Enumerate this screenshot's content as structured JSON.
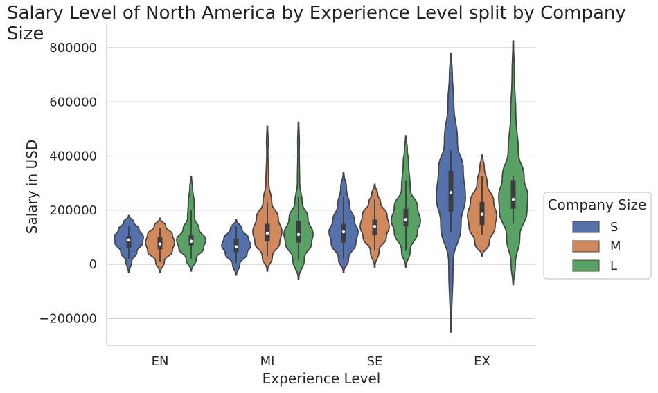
{
  "chart_data": {
    "type": "violin",
    "title": "Salary Level of North America by Experience Level split by Company Size",
    "xlabel": "Experience Level",
    "ylabel": "Salary in USD",
    "ylim": [
      -300000,
      880000
    ],
    "yticks": [
      -200000,
      0,
      200000,
      400000,
      600000,
      800000
    ],
    "ytick_labels": [
      "−200000",
      "0",
      "200000",
      "400000",
      "600000",
      "800000"
    ],
    "categories": [
      "EN",
      "MI",
      "SE",
      "EX"
    ],
    "legend": {
      "title": "Company Size",
      "placement": "right",
      "entries": [
        "S",
        "M",
        "L"
      ]
    },
    "colors": {
      "S": "#5471ab",
      "M": "#d1885c",
      "L": "#59a266"
    },
    "series": [
      {
        "name": "S",
        "violins": [
          {
            "category": "EN",
            "min": -30000,
            "max": 180000,
            "q1": 60000,
            "median": 90000,
            "q3": 105000,
            "whisker_low": 20000,
            "whisker_high": 140000,
            "density": [
              [
                -30000,
                0.02
              ],
              [
                10000,
                0.2
              ],
              [
                45000,
                0.55
              ],
              [
                80000,
                0.95
              ],
              [
                100000,
                1.0
              ],
              [
                130000,
                0.7
              ],
              [
                155000,
                0.35
              ],
              [
                180000,
                0.02
              ]
            ]
          },
          {
            "category": "MI",
            "min": -40000,
            "max": 165000,
            "q1": 45000,
            "median": 65000,
            "q3": 95000,
            "whisker_low": 5000,
            "whisker_high": 140000,
            "density": [
              [
                -40000,
                0.02
              ],
              [
                0,
                0.25
              ],
              [
                40000,
                0.75
              ],
              [
                70000,
                1.0
              ],
              [
                95000,
                0.85
              ],
              [
                130000,
                0.4
              ],
              [
                165000,
                0.02
              ]
            ]
          },
          {
            "category": "SE",
            "min": -30000,
            "max": 340000,
            "q1": 80000,
            "median": 120000,
            "q3": 150000,
            "whisker_low": 20000,
            "whisker_high": 250000,
            "density": [
              [
                -30000,
                0.02
              ],
              [
                20000,
                0.35
              ],
              [
                80000,
                0.85
              ],
              [
                120000,
                1.0
              ],
              [
                160000,
                0.75
              ],
              [
                220000,
                0.4
              ],
              [
                280000,
                0.2
              ],
              [
                340000,
                0.02
              ]
            ]
          },
          {
            "category": "EX",
            "min": -250000,
            "max": 780000,
            "q1": 195000,
            "median": 265000,
            "q3": 345000,
            "whisker_low": 120000,
            "whisker_high": 420000,
            "density": [
              [
                -250000,
                0.02
              ],
              [
                0,
                0.15
              ],
              [
                150000,
                0.7
              ],
              [
                250000,
                1.0
              ],
              [
                350000,
                0.85
              ],
              [
                450000,
                0.45
              ],
              [
                600000,
                0.2
              ],
              [
                700000,
                0.1
              ],
              [
                780000,
                0.02
              ]
            ]
          }
        ]
      },
      {
        "name": "M",
        "violins": [
          {
            "category": "EN",
            "min": -30000,
            "max": 170000,
            "q1": 55000,
            "median": 75000,
            "q3": 100000,
            "whisker_low": 10000,
            "whisker_high": 135000,
            "density": [
              [
                -30000,
                0.02
              ],
              [
                10000,
                0.3
              ],
              [
                50000,
                0.85
              ],
              [
                80000,
                1.0
              ],
              [
                110000,
                0.85
              ],
              [
                140000,
                0.4
              ],
              [
                170000,
                0.02
              ]
            ]
          },
          {
            "category": "MI",
            "min": -25000,
            "max": 510000,
            "q1": 85000,
            "median": 115000,
            "q3": 150000,
            "whisker_low": 30000,
            "whisker_high": 230000,
            "density": [
              [
                -25000,
                0.02
              ],
              [
                30000,
                0.35
              ],
              [
                80000,
                0.85
              ],
              [
                120000,
                1.0
              ],
              [
                170000,
                0.75
              ],
              [
                230000,
                0.3
              ],
              [
                300000,
                0.1
              ],
              [
                420000,
                0.04
              ],
              [
                450000,
                0.06
              ],
              [
                510000,
                0.02
              ]
            ]
          },
          {
            "category": "SE",
            "min": -10000,
            "max": 295000,
            "q1": 110000,
            "median": 140000,
            "q3": 165000,
            "whisker_low": 50000,
            "whisker_high": 240000,
            "density": [
              [
                -10000,
                0.02
              ],
              [
                50000,
                0.3
              ],
              [
                100000,
                0.8
              ],
              [
                140000,
                1.0
              ],
              [
                180000,
                0.85
              ],
              [
                230000,
                0.4
              ],
              [
                260000,
                0.2
              ],
              [
                295000,
                0.02
              ]
            ]
          },
          {
            "category": "EX",
            "min": 30000,
            "max": 405000,
            "q1": 145000,
            "median": 185000,
            "q3": 230000,
            "whisker_low": 110000,
            "whisker_high": 325000,
            "density": [
              [
                30000,
                0.02
              ],
              [
                80000,
                0.5
              ],
              [
                140000,
                0.9
              ],
              [
                180000,
                1.0
              ],
              [
                230000,
                0.8
              ],
              [
                300000,
                0.35
              ],
              [
                360000,
                0.15
              ],
              [
                405000,
                0.02
              ]
            ]
          }
        ]
      },
      {
        "name": "L",
        "violins": [
          {
            "category": "EN",
            "min": -25000,
            "max": 325000,
            "q1": 70000,
            "median": 85000,
            "q3": 110000,
            "whisker_low": 20000,
            "whisker_high": 200000,
            "density": [
              [
                -25000,
                0.02
              ],
              [
                20000,
                0.35
              ],
              [
                60000,
                0.85
              ],
              [
                90000,
                1.0
              ],
              [
                130000,
                0.55
              ],
              [
                170000,
                0.25
              ],
              [
                230000,
                0.2
              ],
              [
                280000,
                0.1
              ],
              [
                325000,
                0.02
              ]
            ]
          },
          {
            "category": "MI",
            "min": -55000,
            "max": 525000,
            "q1": 80000,
            "median": 110000,
            "q3": 160000,
            "whisker_low": 15000,
            "whisker_high": 250000,
            "density": [
              [
                -55000,
                0.02
              ],
              [
                20000,
                0.4
              ],
              [
                80000,
                0.9
              ],
              [
                110000,
                1.0
              ],
              [
                170000,
                0.65
              ],
              [
                230000,
                0.25
              ],
              [
                300000,
                0.08
              ],
              [
                420000,
                0.05
              ],
              [
                450000,
                0.06
              ],
              [
                525000,
                0.02
              ]
            ]
          },
          {
            "category": "SE",
            "min": -10000,
            "max": 475000,
            "q1": 140000,
            "median": 165000,
            "q3": 205000,
            "whisker_low": 50000,
            "whisker_high": 310000,
            "density": [
              [
                -10000,
                0.02
              ],
              [
                50000,
                0.3
              ],
              [
                120000,
                0.8
              ],
              [
                160000,
                1.0
              ],
              [
                210000,
                0.8
              ],
              [
                280000,
                0.3
              ],
              [
                380000,
                0.18
              ],
              [
                420000,
                0.1
              ],
              [
                475000,
                0.02
              ]
            ]
          },
          {
            "category": "EX",
            "min": -75000,
            "max": 825000,
            "q1": 205000,
            "median": 240000,
            "q3": 310000,
            "whisker_low": 150000,
            "whisker_high": 325000,
            "density": [
              [
                -75000,
                0.02
              ],
              [
                0,
                0.15
              ],
              [
                100000,
                0.45
              ],
              [
                200000,
                0.95
              ],
              [
                250000,
                1.0
              ],
              [
                320000,
                0.75
              ],
              [
                420000,
                0.35
              ],
              [
                550000,
                0.18
              ],
              [
                700000,
                0.08
              ],
              [
                825000,
                0.02
              ]
            ]
          }
        ]
      }
    ]
  }
}
